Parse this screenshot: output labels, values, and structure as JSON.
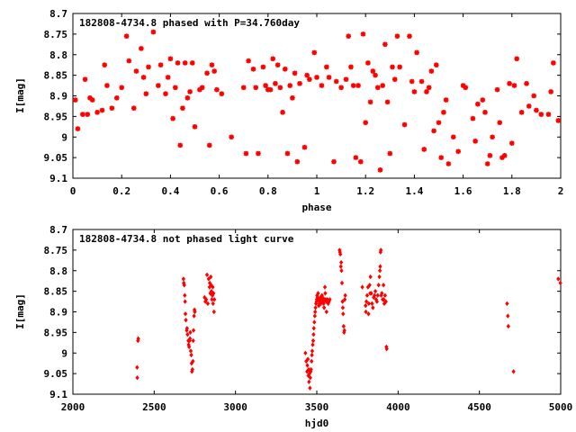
{
  "chart_data": [
    {
      "type": "scatter",
      "title": "182808-4734.8 phased with P=34.760day",
      "xlabel": "phase",
      "ylabel": "I[mag]",
      "xlim": [
        0,
        2
      ],
      "ylim": [
        8.7,
        9.1
      ],
      "y_inverted": true,
      "xticks": [
        0,
        0.2,
        0.4,
        0.6,
        0.8,
        1,
        1.2,
        1.4,
        1.6,
        1.8,
        2
      ],
      "xtick_labels": [
        "0",
        "0.2",
        "0.4",
        "0.6",
        "0.8",
        "1",
        "1.2",
        "1.4",
        "1.6",
        "1.8",
        "2"
      ],
      "yticks": [
        8.7,
        8.75,
        8.8,
        8.85,
        8.9,
        8.95,
        9,
        9.05,
        9.1
      ],
      "ytick_labels": [
        "8.7",
        "8.75",
        "8.8",
        "8.85",
        "8.9",
        "8.95",
        "9",
        "9.05",
        "9.1"
      ],
      "marker": "star",
      "color": "#ff0000",
      "points": [
        [
          0.01,
          8.91
        ],
        [
          0.02,
          8.98
        ],
        [
          0.04,
          8.945
        ],
        [
          0.05,
          8.86
        ],
        [
          0.06,
          8.945
        ],
        [
          0.07,
          8.905
        ],
        [
          0.08,
          8.91
        ],
        [
          0.1,
          8.94
        ],
        [
          0.12,
          8.935
        ],
        [
          0.13,
          8.825
        ],
        [
          0.14,
          8.875
        ],
        [
          0.16,
          8.93
        ],
        [
          0.18,
          8.905
        ],
        [
          0.2,
          8.88
        ],
        [
          0.22,
          8.755
        ],
        [
          0.23,
          8.815
        ],
        [
          0.25,
          8.93
        ],
        [
          0.26,
          8.84
        ],
        [
          0.28,
          8.785
        ],
        [
          0.29,
          8.855
        ],
        [
          0.3,
          8.895
        ],
        [
          0.31,
          8.83
        ],
        [
          0.33,
          8.745
        ],
        [
          0.35,
          8.875
        ],
        [
          0.36,
          8.825
        ],
        [
          0.38,
          8.895
        ],
        [
          0.39,
          8.855
        ],
        [
          0.4,
          8.81
        ],
        [
          0.41,
          8.955
        ],
        [
          0.42,
          8.88
        ],
        [
          0.43,
          8.82
        ],
        [
          0.44,
          9.02
        ],
        [
          0.45,
          8.93
        ],
        [
          0.46,
          8.82
        ],
        [
          0.47,
          8.905
        ],
        [
          0.48,
          8.89
        ],
        [
          0.49,
          8.82
        ],
        [
          0.5,
          8.975
        ],
        [
          0.52,
          8.885
        ],
        [
          0.53,
          8.88
        ],
        [
          0.55,
          8.845
        ],
        [
          0.56,
          9.02
        ],
        [
          0.57,
          8.825
        ],
        [
          0.58,
          8.84
        ],
        [
          0.59,
          8.885
        ],
        [
          0.61,
          8.895
        ],
        [
          0.65,
          9.0
        ],
        [
          0.7,
          8.88
        ],
        [
          0.71,
          9.04
        ],
        [
          0.72,
          8.815
        ],
        [
          0.74,
          8.835
        ],
        [
          0.75,
          8.88
        ],
        [
          0.76,
          9.04
        ],
        [
          0.78,
          8.83
        ],
        [
          0.79,
          8.875
        ],
        [
          0.8,
          8.885
        ],
        [
          0.81,
          8.885
        ],
        [
          0.82,
          8.81
        ],
        [
          0.83,
          8.87
        ],
        [
          0.84,
          8.825
        ],
        [
          0.85,
          8.88
        ],
        [
          0.86,
          8.94
        ],
        [
          0.87,
          8.835
        ],
        [
          0.88,
          9.04
        ],
        [
          0.89,
          8.875
        ],
        [
          0.9,
          8.905
        ],
        [
          0.91,
          8.845
        ],
        [
          0.92,
          9.06
        ],
        [
          0.93,
          8.87
        ],
        [
          0.95,
          9.025
        ],
        [
          0.96,
          8.85
        ],
        [
          0.97,
          8.86
        ],
        [
          0.99,
          8.795
        ],
        [
          1.0,
          8.855
        ],
        [
          1.02,
          8.875
        ],
        [
          1.04,
          8.83
        ],
        [
          1.05,
          8.855
        ],
        [
          1.07,
          9.06
        ],
        [
          1.08,
          8.865
        ],
        [
          1.1,
          8.88
        ],
        [
          1.12,
          8.86
        ],
        [
          1.13,
          8.755
        ],
        [
          1.14,
          8.83
        ],
        [
          1.15,
          8.875
        ],
        [
          1.16,
          9.05
        ],
        [
          1.17,
          8.875
        ],
        [
          1.18,
          9.06
        ],
        [
          1.19,
          8.75
        ],
        [
          1.2,
          8.965
        ],
        [
          1.21,
          8.82
        ],
        [
          1.22,
          8.915
        ],
        [
          1.23,
          8.84
        ],
        [
          1.24,
          8.85
        ],
        [
          1.25,
          8.88
        ],
        [
          1.26,
          9.08
        ],
        [
          1.27,
          8.875
        ],
        [
          1.28,
          8.775
        ],
        [
          1.29,
          8.915
        ],
        [
          1.3,
          9.04
        ],
        [
          1.31,
          8.83
        ],
        [
          1.32,
          8.86
        ],
        [
          1.33,
          8.755
        ],
        [
          1.34,
          8.83
        ],
        [
          1.36,
          8.97
        ],
        [
          1.38,
          8.755
        ],
        [
          1.39,
          8.865
        ],
        [
          1.4,
          8.89
        ],
        [
          1.41,
          8.795
        ],
        [
          1.43,
          8.865
        ],
        [
          1.44,
          9.03
        ],
        [
          1.45,
          8.89
        ],
        [
          1.46,
          8.88
        ],
        [
          1.47,
          8.84
        ],
        [
          1.48,
          8.985
        ],
        [
          1.49,
          8.825
        ],
        [
          1.5,
          8.965
        ],
        [
          1.51,
          9.05
        ],
        [
          1.52,
          8.94
        ],
        [
          1.53,
          8.91
        ],
        [
          1.54,
          9.065
        ],
        [
          1.56,
          9.0
        ],
        [
          1.58,
          9.035
        ],
        [
          1.6,
          8.875
        ],
        [
          1.61,
          8.88
        ],
        [
          1.64,
          8.955
        ],
        [
          1.65,
          9.01
        ],
        [
          1.66,
          8.92
        ],
        [
          1.68,
          8.91
        ],
        [
          1.69,
          8.94
        ],
        [
          1.7,
          9.065
        ],
        [
          1.71,
          9.045
        ],
        [
          1.72,
          9.0
        ],
        [
          1.74,
          8.885
        ],
        [
          1.75,
          8.965
        ],
        [
          1.76,
          9.05
        ],
        [
          1.77,
          9.045
        ],
        [
          1.79,
          8.87
        ],
        [
          1.8,
          9.015
        ],
        [
          1.81,
          8.875
        ],
        [
          1.82,
          8.81
        ],
        [
          1.84,
          8.94
        ],
        [
          1.86,
          8.87
        ],
        [
          1.87,
          8.925
        ],
        [
          1.89,
          8.9
        ],
        [
          1.9,
          8.935
        ],
        [
          1.92,
          8.945
        ],
        [
          1.95,
          8.945
        ],
        [
          1.96,
          8.89
        ],
        [
          1.97,
          8.82
        ],
        [
          1.99,
          8.96
        ]
      ]
    },
    {
      "type": "scatter",
      "title": "182808-4734.8 not phased light curve",
      "xlabel": "hjd0",
      "ylabel": "I[mag]",
      "xlim": [
        2000,
        5000
      ],
      "ylim": [
        8.7,
        9.1
      ],
      "y_inverted": true,
      "xticks": [
        2000,
        2500,
        3000,
        3500,
        4000,
        4500,
        5000
      ],
      "xtick_labels": [
        "2000",
        "2500",
        "3000",
        "3500",
        "4000",
        "4500",
        "5000"
      ],
      "yticks": [
        8.7,
        8.75,
        8.8,
        8.85,
        8.9,
        8.95,
        9,
        9.05,
        9.1
      ],
      "ytick_labels": [
        "8.7",
        "8.75",
        "8.8",
        "8.85",
        "8.9",
        "8.95",
        "9",
        "9.05",
        "9.1"
      ],
      "marker": "diamond",
      "color": "#ff0000",
      "points": [
        [
          2395,
          9.035
        ],
        [
          2396,
          9.06
        ],
        [
          2400,
          8.97
        ],
        [
          2402,
          8.965
        ],
        [
          2680,
          8.82
        ],
        [
          2682,
          8.83
        ],
        [
          2685,
          8.835
        ],
        [
          2688,
          8.86
        ],
        [
          2690,
          8.875
        ],
        [
          2692,
          8.905
        ],
        [
          2695,
          8.92
        ],
        [
          2700,
          8.945
        ],
        [
          2702,
          8.94
        ],
        [
          2705,
          8.955
        ],
        [
          2710,
          8.97
        ],
        [
          2712,
          8.98
        ],
        [
          2715,
          8.985
        ],
        [
          2718,
          8.97
        ],
        [
          2720,
          8.965
        ],
        [
          2722,
          8.95
        ],
        [
          2725,
          8.995
        ],
        [
          2728,
          9.005
        ],
        [
          2730,
          9.025
        ],
        [
          2732,
          9.045
        ],
        [
          2735,
          9.04
        ],
        [
          2738,
          9.02
        ],
        [
          2740,
          8.97
        ],
        [
          2742,
          8.945
        ],
        [
          2745,
          8.91
        ],
        [
          2748,
          8.895
        ],
        [
          2750,
          8.9
        ],
        [
          2810,
          8.865
        ],
        [
          2815,
          8.875
        ],
        [
          2820,
          8.87
        ],
        [
          2825,
          8.81
        ],
        [
          2830,
          8.88
        ],
        [
          2835,
          8.82
        ],
        [
          2840,
          8.84
        ],
        [
          2842,
          8.83
        ],
        [
          2845,
          8.855
        ],
        [
          2848,
          8.815
        ],
        [
          2850,
          8.835
        ],
        [
          2852,
          8.85
        ],
        [
          2855,
          8.87
        ],
        [
          2858,
          8.86
        ],
        [
          2860,
          8.84
        ],
        [
          2862,
          8.88
        ],
        [
          2865,
          8.855
        ],
        [
          2868,
          8.9
        ],
        [
          2870,
          8.87
        ],
        [
          3430,
          9.0
        ],
        [
          3435,
          9.02
        ],
        [
          3440,
          9.045
        ],
        [
          3442,
          9.03
        ],
        [
          3445,
          9.015
        ],
        [
          3448,
          9.055
        ],
        [
          3450,
          9.04
        ],
        [
          3452,
          9.07
        ],
        [
          3455,
          9.05
        ],
        [
          3458,
          9.085
        ],
        [
          3460,
          9.06
        ],
        [
          3462,
          9.045
        ],
        [
          3465,
          9.04
        ],
        [
          3468,
          9.02
        ],
        [
          3470,
          9.005
        ],
        [
          3472,
          8.995
        ],
        [
          3475,
          8.98
        ],
        [
          3478,
          8.97
        ],
        [
          3480,
          8.955
        ],
        [
          3482,
          8.94
        ],
        [
          3485,
          8.925
        ],
        [
          3488,
          8.91
        ],
        [
          3490,
          8.9
        ],
        [
          3492,
          8.89
        ],
        [
          3495,
          8.88
        ],
        [
          3498,
          8.875
        ],
        [
          3500,
          8.87
        ],
        [
          3502,
          8.86
        ],
        [
          3505,
          8.865
        ],
        [
          3508,
          8.855
        ],
        [
          3510,
          8.87
        ],
        [
          3512,
          8.885
        ],
        [
          3515,
          8.88
        ],
        [
          3518,
          8.875
        ],
        [
          3520,
          8.87
        ],
        [
          3522,
          8.865
        ],
        [
          3525,
          8.88
        ],
        [
          3528,
          8.87
        ],
        [
          3530,
          8.875
        ],
        [
          3532,
          8.86
        ],
        [
          3535,
          8.865
        ],
        [
          3538,
          8.87
        ],
        [
          3540,
          8.875
        ],
        [
          3542,
          8.88
        ],
        [
          3545,
          8.89
        ],
        [
          3548,
          8.87
        ],
        [
          3550,
          8.84
        ],
        [
          3552,
          8.855
        ],
        [
          3555,
          8.87
        ],
        [
          3558,
          8.875
        ],
        [
          3560,
          8.9
        ],
        [
          3565,
          8.87
        ],
        [
          3570,
          8.88
        ],
        [
          3575,
          8.875
        ],
        [
          3580,
          8.87
        ],
        [
          3640,
          8.75
        ],
        [
          3642,
          8.755
        ],
        [
          3645,
          8.76
        ],
        [
          3648,
          8.79
        ],
        [
          3650,
          8.78
        ],
        [
          3652,
          8.8
        ],
        [
          3655,
          8.83
        ],
        [
          3658,
          8.875
        ],
        [
          3660,
          8.89
        ],
        [
          3662,
          8.905
        ],
        [
          3665,
          8.935
        ],
        [
          3668,
          8.95
        ],
        [
          3670,
          8.945
        ],
        [
          3672,
          8.87
        ],
        [
          3675,
          8.86
        ],
        [
          3780,
          8.84
        ],
        [
          3800,
          8.885
        ],
        [
          3802,
          8.9
        ],
        [
          3805,
          8.875
        ],
        [
          3810,
          8.86
        ],
        [
          3815,
          8.84
        ],
        [
          3818,
          8.905
        ],
        [
          3820,
          8.88
        ],
        [
          3825,
          8.835
        ],
        [
          3828,
          8.855
        ],
        [
          3830,
          8.815
        ],
        [
          3835,
          8.855
        ],
        [
          3840,
          8.88
        ],
        [
          3845,
          8.89
        ],
        [
          3850,
          8.865
        ],
        [
          3855,
          8.86
        ],
        [
          3860,
          8.85
        ],
        [
          3865,
          8.87
        ],
        [
          3870,
          8.875
        ],
        [
          3875,
          8.86
        ],
        [
          3880,
          8.835
        ],
        [
          3885,
          8.815
        ],
        [
          3888,
          8.8
        ],
        [
          3890,
          8.79
        ],
        [
          3892,
          8.755
        ],
        [
          3894,
          8.75
        ],
        [
          3896,
          8.86
        ],
        [
          3900,
          8.855
        ],
        [
          3905,
          8.87
        ],
        [
          3910,
          8.835
        ],
        [
          3912,
          8.87
        ],
        [
          3915,
          8.88
        ],
        [
          3920,
          8.86
        ],
        [
          3925,
          8.875
        ],
        [
          3928,
          8.985
        ],
        [
          3930,
          8.99
        ],
        [
          4670,
          8.88
        ],
        [
          4675,
          8.91
        ],
        [
          4678,
          8.935
        ],
        [
          4710,
          9.045
        ],
        [
          4985,
          8.82
        ],
        [
          4998,
          8.83
        ]
      ]
    }
  ]
}
